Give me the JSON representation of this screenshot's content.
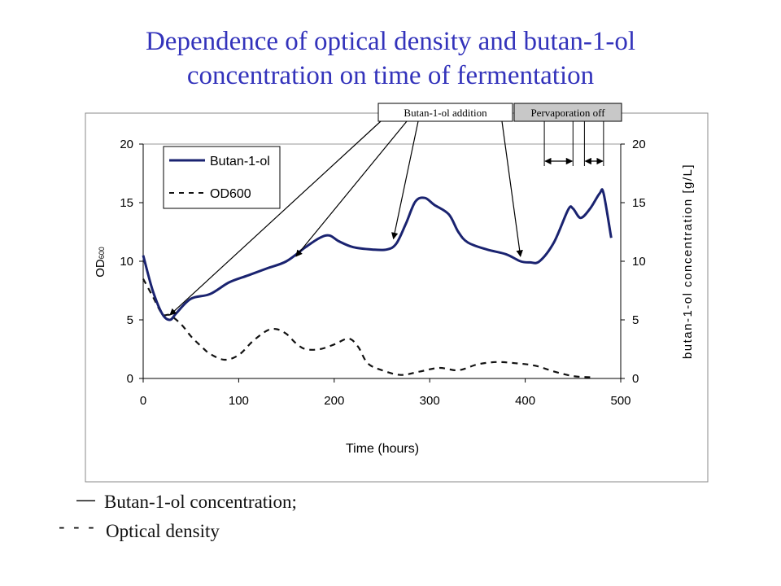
{
  "title": {
    "line1": "Dependence of optical density and butan-1-ol",
    "line2": "concentration on time of fermentation"
  },
  "chart_data": {
    "type": "line",
    "xlabel": "Time (hours)",
    "ylabel_left": "OD",
    "ylabel_left_sub": "600",
    "ylabel_right": "butan-1-ol concentration [g/L]",
    "xlim": [
      0,
      500
    ],
    "ylim_left": [
      0,
      20
    ],
    "ylim_right": [
      0,
      20
    ],
    "x_ticks": [
      0,
      100,
      200,
      300,
      400,
      500
    ],
    "y_ticks_left": [
      0,
      5,
      10,
      15,
      20
    ],
    "y_ticks_right": [
      0,
      5,
      10,
      15,
      20
    ],
    "legend_placement": "top-left",
    "grid": false,
    "series": [
      {
        "name": "Butan-1-ol",
        "style": "solid",
        "color": "#1a2370",
        "x": [
          0,
          10,
          20,
          28,
          35,
          50,
          70,
          90,
          110,
          130,
          150,
          170,
          185,
          195,
          205,
          220,
          240,
          255,
          265,
          275,
          285,
          295,
          305,
          320,
          330,
          340,
          360,
          380,
          395,
          405,
          415,
          430,
          445,
          450,
          458,
          468,
          478,
          482,
          490
        ],
        "y": [
          10.5,
          7.5,
          5.5,
          5.0,
          5.6,
          6.8,
          7.2,
          8.2,
          8.8,
          9.4,
          10.0,
          11.2,
          12.0,
          12.2,
          11.7,
          11.2,
          11.0,
          11.0,
          11.5,
          13.2,
          15.1,
          15.4,
          14.8,
          14.0,
          12.5,
          11.6,
          11.0,
          10.6,
          10.0,
          9.9,
          10.0,
          11.6,
          14.4,
          14.5,
          13.7,
          14.5,
          15.8,
          15.8,
          12.0
        ]
      },
      {
        "name": "OD600",
        "style": "dashed",
        "color": "#111111",
        "x": [
          0,
          10,
          20,
          28,
          40,
          50,
          60,
          70,
          85,
          100,
          115,
          130,
          140,
          150,
          160,
          170,
          185,
          200,
          215,
          225,
          235,
          250,
          270,
          290,
          310,
          330,
          350,
          370,
          390,
          410,
          430,
          450,
          470
        ],
        "y": [
          8.5,
          7.0,
          5.5,
          5.4,
          4.6,
          3.6,
          2.8,
          2.1,
          1.6,
          2.0,
          3.2,
          4.1,
          4.2,
          3.8,
          3.0,
          2.5,
          2.5,
          2.9,
          3.4,
          2.7,
          1.3,
          0.7,
          0.3,
          0.6,
          0.9,
          0.7,
          1.2,
          1.4,
          1.3,
          1.1,
          0.6,
          0.2,
          0.1
        ]
      }
    ],
    "annotations": [
      {
        "label": "Butan-1-ol addition",
        "points_to_x": [
          28,
          160,
          262,
          395
        ]
      },
      {
        "label": "Pervaporation off",
        "intervals": [
          [
            420,
            450
          ],
          [
            462,
            482
          ]
        ]
      }
    ]
  },
  "footnotes": {
    "solid_mark": "—",
    "solid_text": "Butan-1-ol concentration;",
    "dashed_mark": "- - -",
    "dashed_text": "Optical density"
  }
}
